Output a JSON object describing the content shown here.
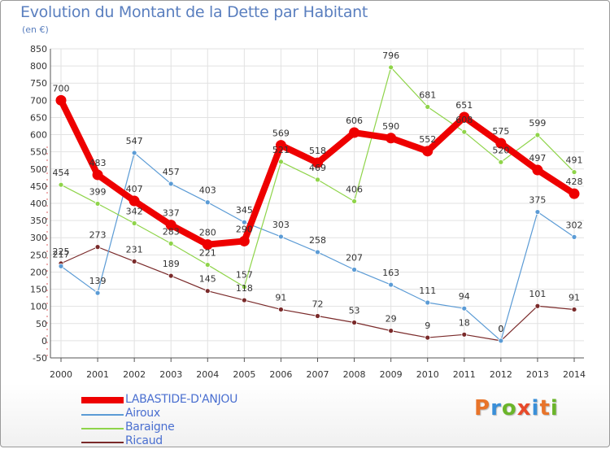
{
  "title": "Evolution du Montant de la Dette par Habitant",
  "subtitle": "(en €)",
  "brand": {
    "text": "Proxiti",
    "letter_colors": [
      "#e8742a",
      "#3a8fd8",
      "#6bb52a",
      "#e84a2a",
      "#3a8fd8",
      "#e8742a",
      "#6bb52a"
    ]
  },
  "chart_data": {
    "type": "line",
    "categories": [
      "2000",
      "2001",
      "2002",
      "2003",
      "2004",
      "2005",
      "2006",
      "2007",
      "2008",
      "2009",
      "2010",
      "2011",
      "2012",
      "2013",
      "2014"
    ],
    "ylim": [
      -50,
      850
    ],
    "yticks": [
      -50,
      0,
      50,
      100,
      150,
      200,
      250,
      300,
      350,
      400,
      450,
      500,
      550,
      600,
      650,
      700,
      750,
      800,
      850
    ],
    "grid": true,
    "legend_position": "bottom-left",
    "series": [
      {
        "name": "LABASTIDE-D'ANJOU",
        "color": "#ee0000",
        "values": [
          700,
          483,
          407,
          337,
          280,
          290,
          569,
          518,
          606,
          590,
          552,
          651,
          575,
          497,
          428
        ],
        "labels": [
          "700",
          "483",
          "407",
          "337",
          "280",
          "290",
          "569",
          "518",
          "606",
          "590",
          "552",
          "651",
          "575",
          "497",
          "428"
        ]
      },
      {
        "name": "Airoux",
        "color": "#5b9bd5",
        "values": [
          217,
          139,
          547,
          457,
          403,
          345,
          303,
          258,
          207,
          163,
          111,
          94,
          0,
          375,
          302
        ],
        "labels": [
          "217",
          "139",
          "547",
          "457",
          "403",
          "345",
          "303",
          "258",
          "207",
          "163",
          "111",
          "94",
          "0",
          "375",
          "302"
        ]
      },
      {
        "name": "Baraigne",
        "color": "#8fd44a",
        "values": [
          454,
          399,
          342,
          283,
          221,
          157,
          521,
          469,
          406,
          796,
          681,
          608,
          520,
          599,
          491
        ],
        "labels": [
          "454",
          "399",
          "342",
          "283",
          "221",
          "157",
          "521",
          "469",
          "406",
          "796",
          "681",
          "608",
          "520",
          "599",
          "491"
        ]
      },
      {
        "name": "Ricaud",
        "color": "#7a2a2a",
        "values": [
          225,
          273,
          231,
          189,
          145,
          118,
          91,
          72,
          53,
          29,
          9,
          18,
          0,
          101,
          91
        ],
        "labels": [
          "225",
          "273",
          "231",
          "189",
          "145",
          "118",
          "91",
          "72",
          "53",
          "29",
          "9",
          "18",
          "0",
          "101",
          "91"
        ]
      }
    ]
  }
}
